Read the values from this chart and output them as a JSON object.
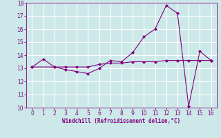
{
  "xlabel": "Windchill (Refroidissement éolien,°C)",
  "line1_x": [
    0,
    1,
    2,
    3,
    4,
    5,
    6,
    7,
    8,
    9,
    10,
    11,
    12,
    13,
    14,
    15,
    16
  ],
  "line1_y": [
    13.1,
    13.7,
    13.1,
    12.9,
    12.75,
    12.6,
    13.0,
    13.6,
    13.5,
    14.2,
    15.4,
    16.0,
    17.8,
    17.2,
    10.1,
    14.3,
    13.6
  ],
  "line2_x": [
    0,
    2,
    3,
    4,
    5,
    6,
    7,
    8,
    9,
    10,
    11,
    12,
    13,
    14,
    15,
    16
  ],
  "line2_y": [
    13.1,
    13.1,
    13.1,
    13.1,
    13.1,
    13.3,
    13.4,
    13.4,
    13.5,
    13.5,
    13.5,
    13.6,
    13.6,
    13.6,
    13.6,
    13.6
  ],
  "line_color": "#800080",
  "bg_color": "#cce8e8",
  "grid_color": "#ffffff",
  "xlim": [
    -0.5,
    16.5
  ],
  "ylim": [
    10,
    18
  ],
  "xticks": [
    0,
    1,
    2,
    3,
    4,
    5,
    6,
    7,
    8,
    9,
    10,
    11,
    12,
    13,
    14,
    15,
    16
  ],
  "yticks": [
    10,
    11,
    12,
    13,
    14,
    15,
    16,
    17,
    18
  ]
}
